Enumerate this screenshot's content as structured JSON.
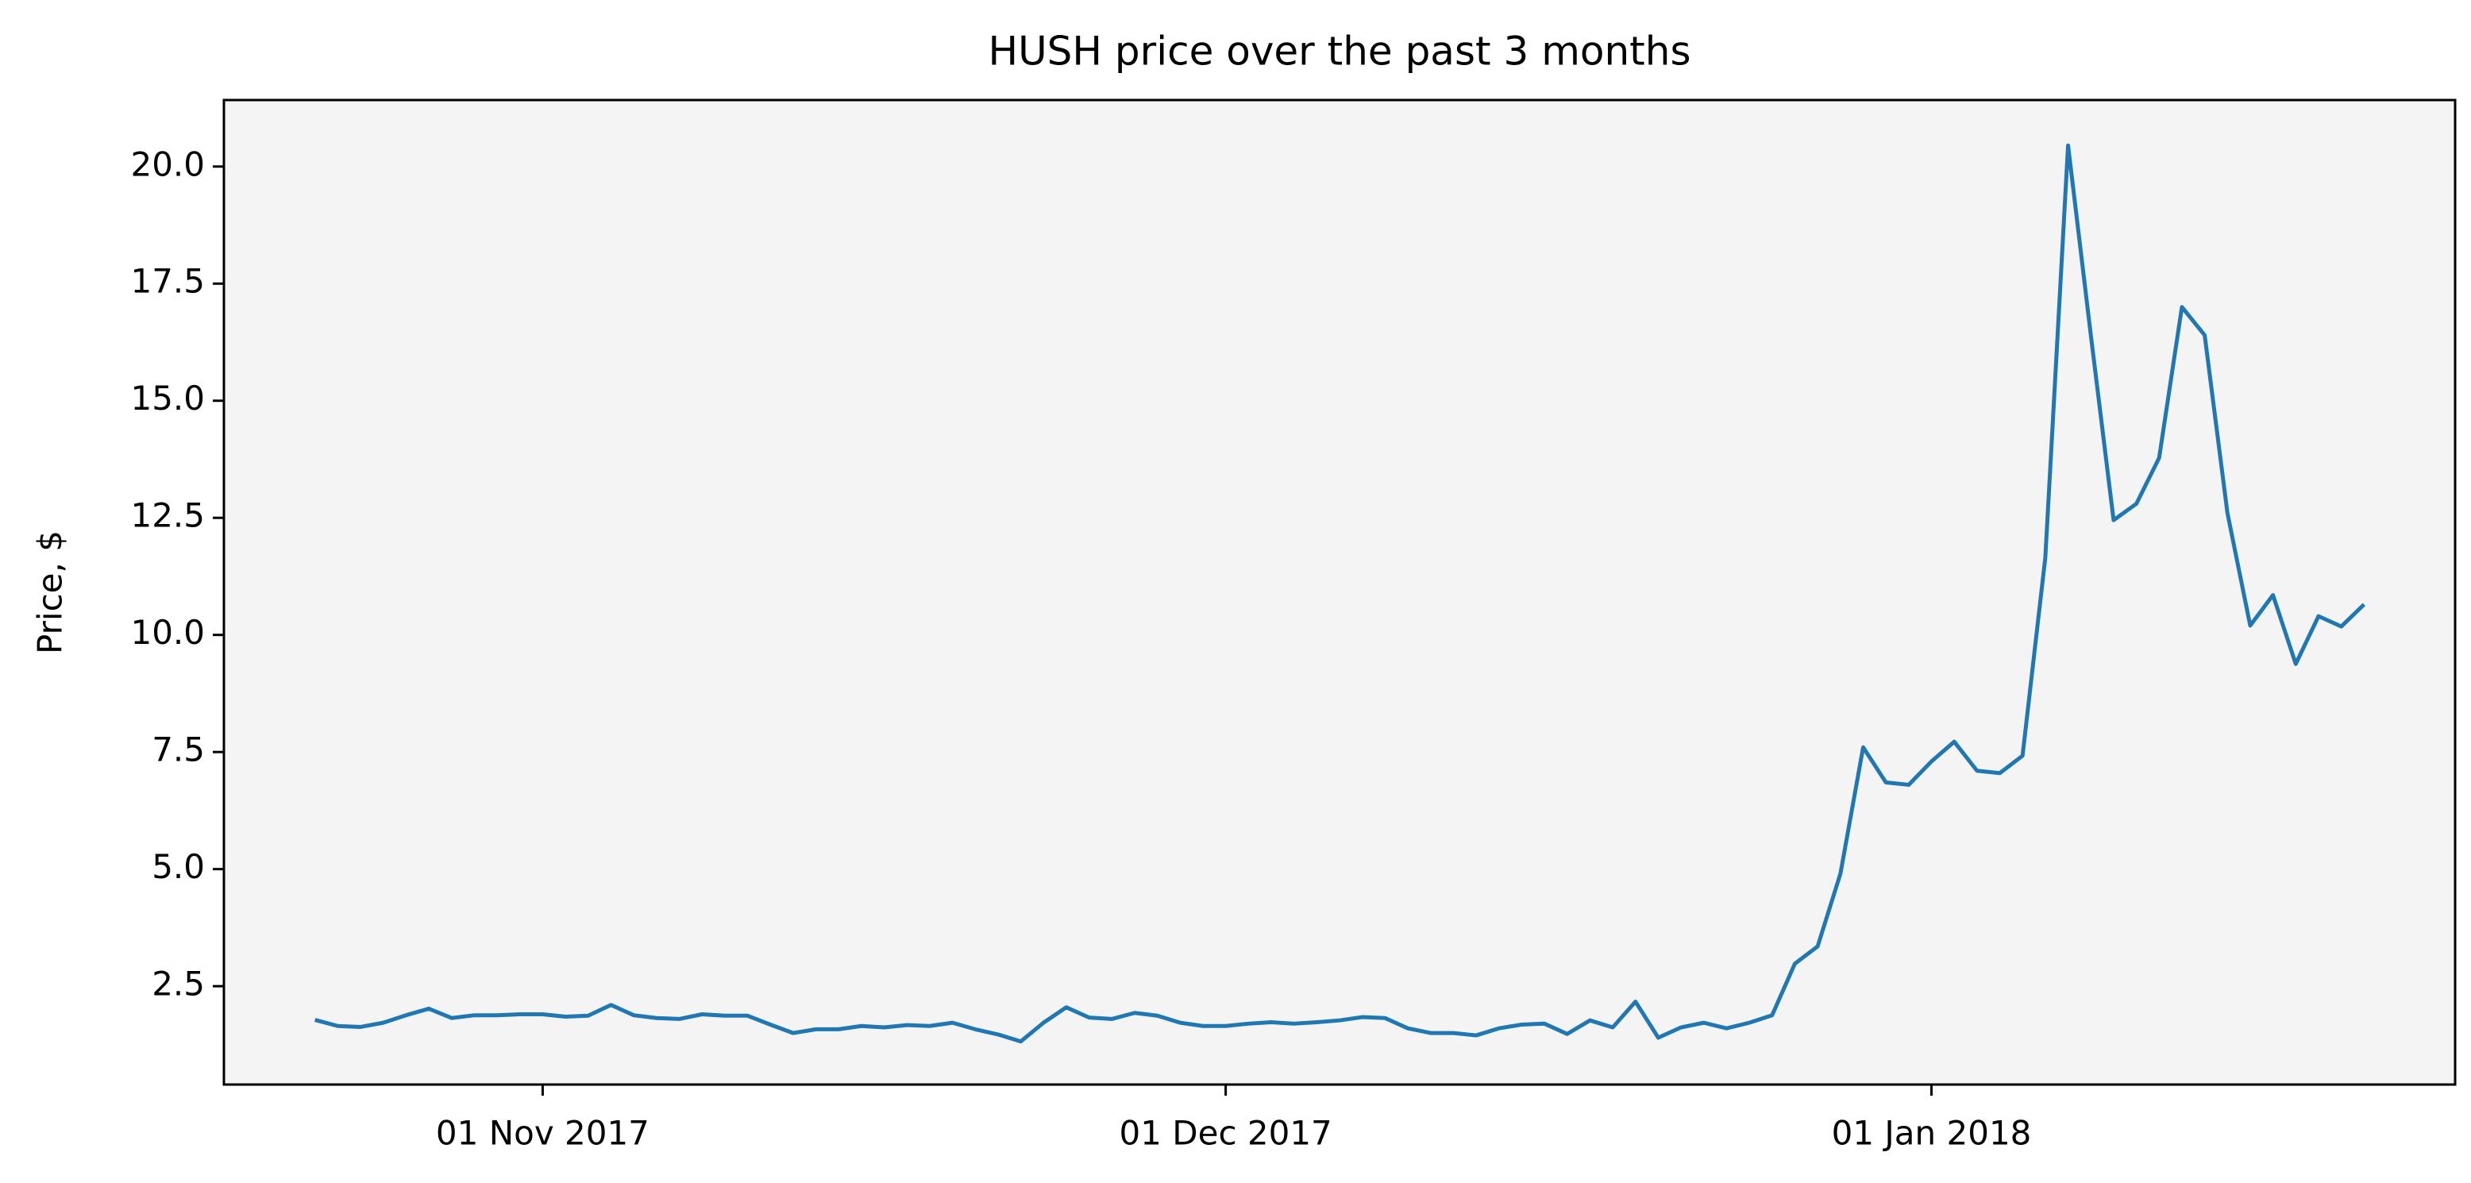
{
  "chart_data": {
    "type": "line",
    "title": "HUSH price over the past 3 months",
    "y_label": "Price, $",
    "x": [
      "2017-10-22",
      "2017-10-23",
      "2017-10-24",
      "2017-10-25",
      "2017-10-26",
      "2017-10-27",
      "2017-10-28",
      "2017-10-29",
      "2017-10-30",
      "2017-10-31",
      "2017-11-01",
      "2017-11-02",
      "2017-11-03",
      "2017-11-04",
      "2017-11-05",
      "2017-11-06",
      "2017-11-07",
      "2017-11-08",
      "2017-11-09",
      "2017-11-10",
      "2017-11-11",
      "2017-11-12",
      "2017-11-13",
      "2017-11-14",
      "2017-11-15",
      "2017-11-16",
      "2017-11-17",
      "2017-11-18",
      "2017-11-19",
      "2017-11-20",
      "2017-11-21",
      "2017-11-22",
      "2017-11-23",
      "2017-11-24",
      "2017-11-25",
      "2017-11-26",
      "2017-11-27",
      "2017-11-28",
      "2017-11-29",
      "2017-11-30",
      "2017-12-01",
      "2017-12-02",
      "2017-12-03",
      "2017-12-04",
      "2017-12-05",
      "2017-12-06",
      "2017-12-07",
      "2017-12-08",
      "2017-12-09",
      "2017-12-10",
      "2017-12-11",
      "2017-12-12",
      "2017-12-13",
      "2017-12-14",
      "2017-12-15",
      "2017-12-16",
      "2017-12-17",
      "2017-12-18",
      "2017-12-19",
      "2017-12-20",
      "2017-12-21",
      "2017-12-22",
      "2017-12-23",
      "2017-12-24",
      "2017-12-25",
      "2017-12-26",
      "2017-12-27",
      "2017-12-28",
      "2017-12-29",
      "2017-12-30",
      "2017-12-31",
      "2018-01-01",
      "2018-01-02",
      "2018-01-03",
      "2018-01-04",
      "2018-01-05",
      "2018-01-06",
      "2018-01-07",
      "2018-01-08",
      "2018-01-09",
      "2018-01-10",
      "2018-01-11",
      "2018-01-12",
      "2018-01-13",
      "2018-01-14",
      "2018-01-15",
      "2018-01-16",
      "2018-01-17",
      "2018-01-18",
      "2018-01-19",
      "2018-01-20"
    ],
    "series": [
      {
        "name": "HUSH",
        "color": "#1f77b4",
        "values": [
          1.78,
          1.65,
          1.63,
          1.72,
          1.88,
          2.02,
          1.82,
          1.88,
          1.88,
          1.9,
          1.9,
          1.85,
          1.87,
          2.1,
          1.88,
          1.82,
          1.8,
          1.9,
          1.87,
          1.87,
          1.68,
          1.5,
          1.58,
          1.58,
          1.65,
          1.62,
          1.67,
          1.65,
          1.72,
          1.58,
          1.47,
          1.32,
          1.72,
          2.05,
          1.83,
          1.8,
          1.93,
          1.87,
          1.72,
          1.65,
          1.65,
          1.7,
          1.73,
          1.7,
          1.73,
          1.77,
          1.84,
          1.82,
          1.6,
          1.5,
          1.5,
          1.45,
          1.6,
          1.68,
          1.7,
          1.48,
          1.77,
          1.62,
          2.17,
          1.4,
          1.62,
          1.72,
          1.6,
          1.72,
          1.88,
          2.98,
          3.35,
          4.9,
          7.6,
          6.85,
          6.8,
          7.3,
          7.72,
          7.1,
          7.05,
          7.42,
          11.65,
          20.45,
          16.4,
          12.45,
          12.8,
          13.78,
          17.0,
          16.4,
          12.6,
          10.2,
          10.85,
          9.38,
          10.4,
          10.18,
          10.65
        ]
      }
    ],
    "xlim": [
      "2017-10-18",
      "2018-01-24"
    ],
    "xticks": [
      {
        "value": "2017-11-01",
        "label": "01 Nov 2017"
      },
      {
        "value": "2017-12-01",
        "label": "01 Dec 2017"
      },
      {
        "value": "2018-01-01",
        "label": "01 Jan 2018"
      }
    ],
    "ylim": [
      0.4,
      21.42
    ],
    "yticks": [
      2.5,
      {
        "value": 5,
        "label": "5.0"
      },
      7.5,
      {
        "value": 10,
        "label": "10.0"
      },
      12.5,
      {
        "value": 15,
        "label": "15.0"
      },
      17.5,
      {
        "value": 20,
        "label": "20.0"
      }
    ],
    "background": "#f4f4f4",
    "grid": false
  }
}
